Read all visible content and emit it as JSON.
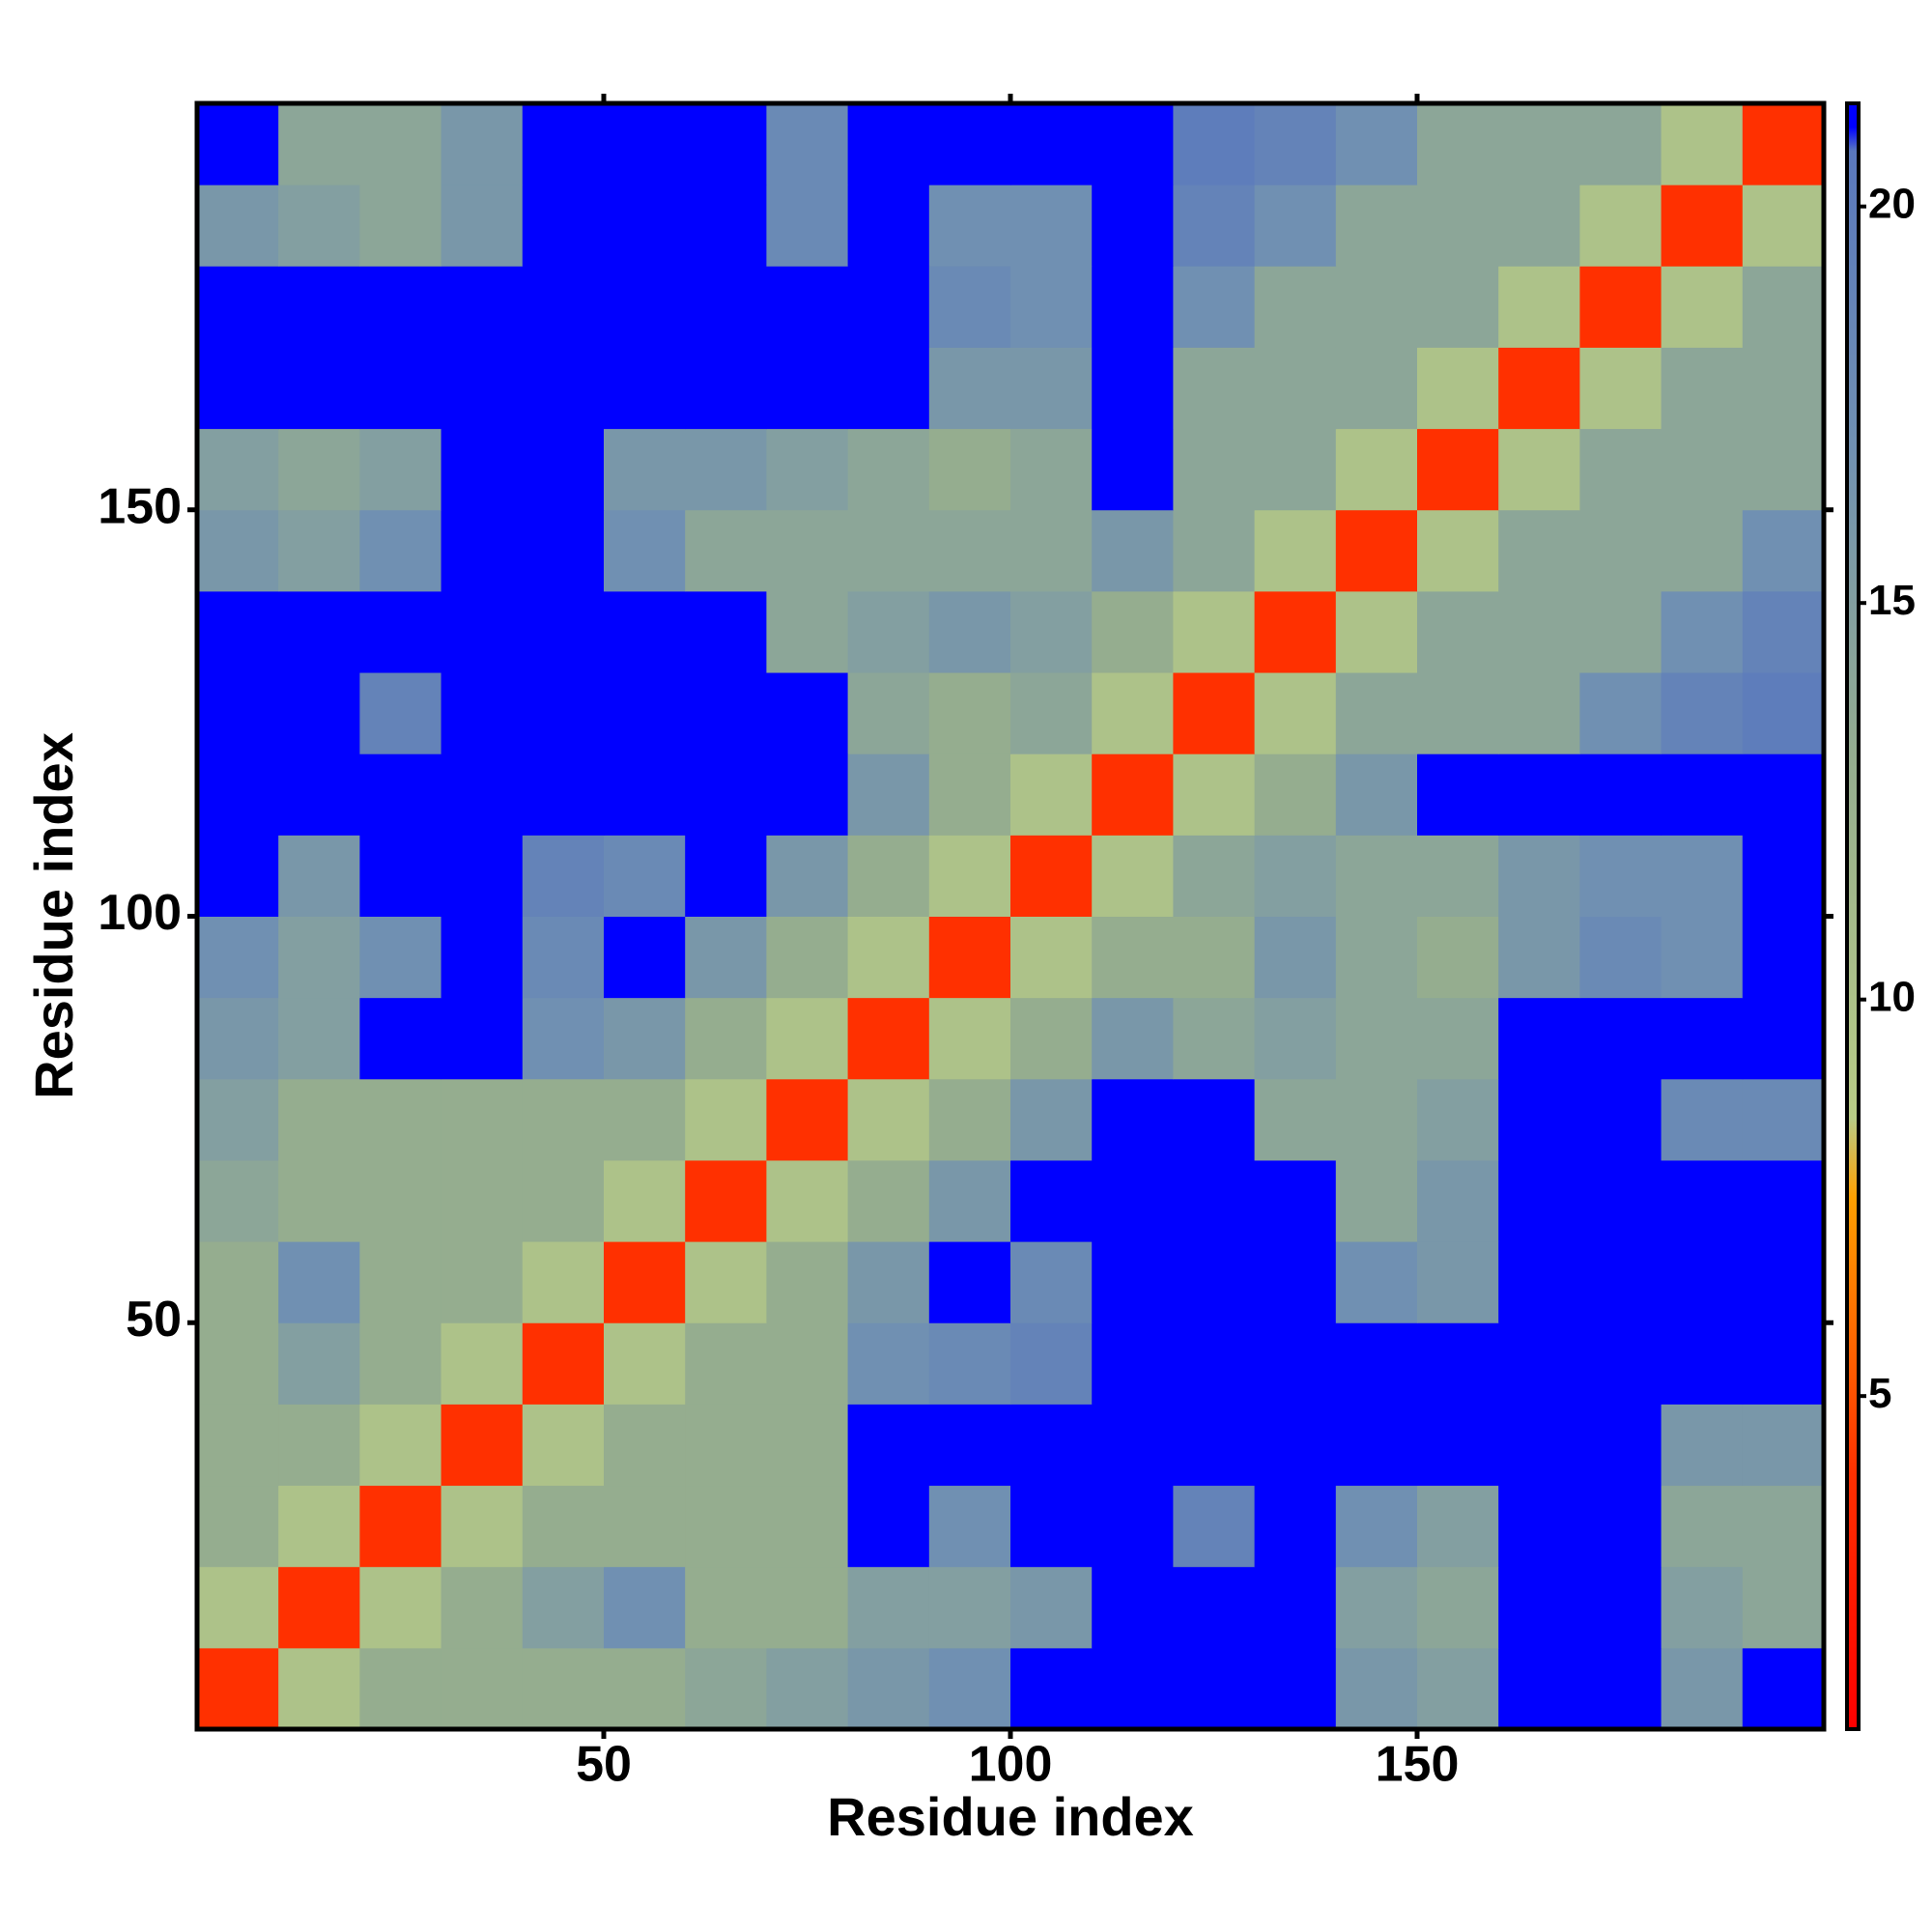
{
  "chart_data": {
    "type": "heatmap",
    "xlabel": "Residue index",
    "ylabel": "Residue index",
    "x": [
      5,
      15,
      25,
      35,
      45,
      55,
      65,
      75,
      85,
      95,
      105,
      115,
      125,
      135,
      145,
      155,
      165,
      175,
      185,
      195
    ],
    "y": [
      5,
      15,
      25,
      35,
      45,
      55,
      65,
      75,
      85,
      95,
      105,
      115,
      125,
      135,
      145,
      155,
      165,
      175,
      185,
      195
    ],
    "xlim": [
      0,
      200
    ],
    "ylim": [
      0,
      200
    ],
    "xticks": [
      50,
      100,
      150
    ],
    "yticks": [
      50,
      100,
      150
    ],
    "clim": [
      0.8,
      21.3
    ],
    "cticks": [
      5,
      10,
      15,
      20
    ],
    "colorscale": [
      [
        0.8,
        "#ff0000"
      ],
      [
        4,
        "#ff3000"
      ],
      [
        7.5,
        "#ffa000"
      ],
      [
        8.5,
        "#b9cc86"
      ],
      [
        13,
        "#95ad8f"
      ],
      [
        17,
        "#7090b2"
      ],
      [
        20.7,
        "#5a78bd"
      ],
      [
        21,
        "#0000ff"
      ]
    ],
    "z": [
      [
        4,
        10,
        13,
        13,
        13,
        13,
        14,
        15,
        16,
        17,
        21,
        21,
        21,
        21,
        16,
        15,
        21,
        21,
        16,
        21
      ],
      [
        10,
        4,
        10,
        13,
        15,
        17,
        13,
        13,
        15,
        15,
        16,
        21,
        21,
        21,
        15,
        14,
        21,
        21,
        15,
        14
      ],
      [
        13,
        10,
        4,
        10,
        13,
        13,
        13,
        13,
        21,
        17,
        21,
        21,
        19,
        21,
        17,
        15,
        21,
        21,
        14,
        14
      ],
      [
        13,
        13,
        10,
        4,
        10,
        13,
        13,
        13,
        21,
        21,
        21,
        21,
        21,
        21,
        21,
        21,
        21,
        21,
        16,
        16
      ],
      [
        13,
        15,
        13,
        10,
        4,
        10,
        13,
        13,
        17,
        18,
        19,
        21,
        21,
        21,
        21,
        21,
        21,
        21,
        21,
        21
      ],
      [
        13,
        17,
        13,
        13,
        10,
        4,
        10,
        13,
        16,
        21,
        18,
        21,
        21,
        21,
        17,
        16,
        21,
        21,
        21,
        21
      ],
      [
        14,
        13,
        13,
        13,
        13,
        10,
        4,
        10,
        13,
        16,
        21,
        21,
        21,
        21,
        14,
        16,
        21,
        21,
        21,
        21
      ],
      [
        15,
        13,
        13,
        13,
        13,
        13,
        10,
        4,
        10,
        13,
        16,
        21,
        21,
        14,
        14,
        15,
        21,
        21,
        18,
        18
      ],
      [
        16,
        15,
        21,
        21,
        17,
        16,
        13,
        10,
        4,
        10,
        13,
        16,
        14,
        15,
        14,
        14,
        21,
        21,
        21,
        21
      ],
      [
        17,
        15,
        17,
        21,
        18,
        21,
        16,
        13,
        10,
        4,
        10,
        13,
        13,
        16,
        14,
        13,
        16,
        18,
        17,
        21
      ],
      [
        21,
        16,
        21,
        21,
        19,
        18,
        21,
        16,
        13,
        10,
        4,
        10,
        14,
        15,
        14,
        14,
        16,
        17,
        17,
        21
      ],
      [
        21,
        21,
        21,
        21,
        21,
        21,
        21,
        21,
        16,
        13,
        10,
        4,
        10,
        13,
        16,
        21,
        21,
        21,
        21,
        21
      ],
      [
        21,
        21,
        19,
        21,
        21,
        21,
        21,
        21,
        14,
        13,
        14,
        10,
        4,
        10,
        14,
        14,
        14,
        17,
        19,
        20
      ],
      [
        21,
        21,
        21,
        21,
        21,
        21,
        21,
        14,
        15,
        16,
        15,
        13,
        10,
        4,
        10,
        14,
        14,
        14,
        17,
        19
      ],
      [
        16,
        15,
        17,
        21,
        21,
        17,
        14,
        14,
        14,
        14,
        14,
        16,
        14,
        10,
        4,
        10,
        14,
        14,
        14,
        17
      ],
      [
        15,
        14,
        15,
        21,
        21,
        16,
        16,
        15,
        14,
        13,
        14,
        21,
        14,
        14,
        10,
        4,
        10,
        14,
        14,
        14
      ],
      [
        21,
        21,
        21,
        21,
        21,
        21,
        21,
        21,
        21,
        16,
        16,
        21,
        14,
        14,
        14,
        10,
        4,
        10,
        14,
        14
      ],
      [
        21,
        21,
        21,
        21,
        21,
        21,
        21,
        21,
        21,
        18,
        17,
        21,
        17,
        14,
        14,
        14,
        10,
        4,
        10,
        14
      ],
      [
        16,
        15,
        14,
        16,
        21,
        21,
        21,
        18,
        21,
        17,
        17,
        21,
        19,
        17,
        14,
        14,
        14,
        10,
        4,
        10
      ],
      [
        21,
        14,
        14,
        16,
        21,
        21,
        21,
        18,
        21,
        21,
        21,
        21,
        20,
        19,
        17,
        14,
        14,
        14,
        10,
        4
      ]
    ]
  }
}
